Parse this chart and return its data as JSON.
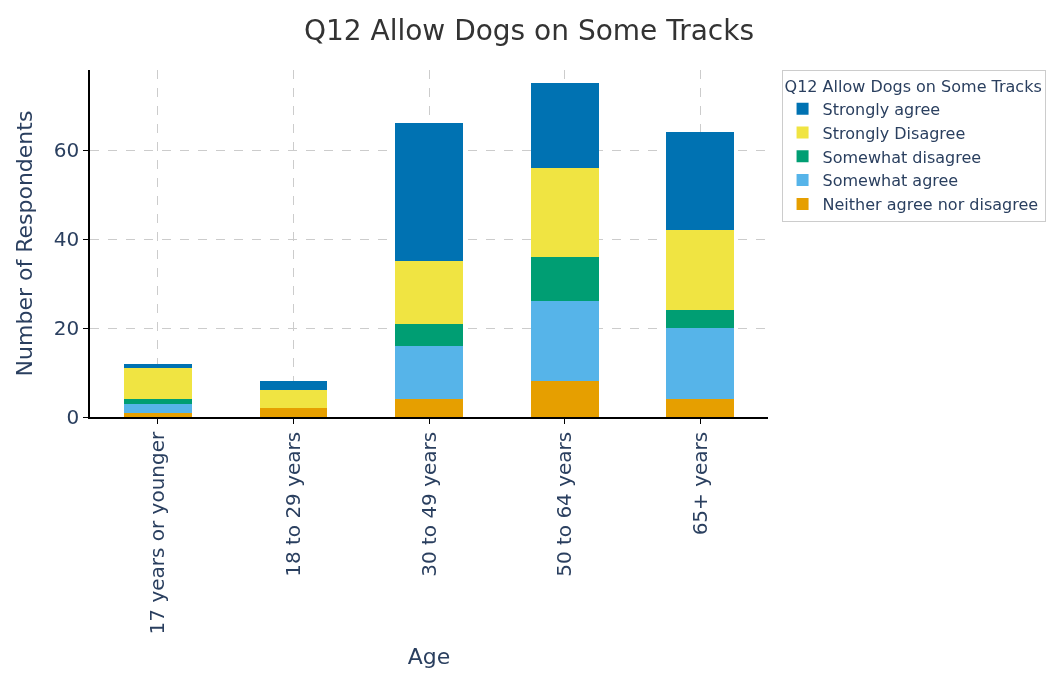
{
  "chart_data": {
    "type": "bar",
    "stacked": true,
    "title": "Q12 Allow Dogs on Some Tracks",
    "xlabel": "Age",
    "ylabel": "Number of Respondents",
    "legend_title": "Q12 Allow Dogs on Some Tracks",
    "categories": [
      "17 years or younger",
      "18 to 29 years",
      "30 to 49 years",
      "50 to 64 years",
      "65+ years"
    ],
    "series": [
      {
        "name": "Neither agree nor disagree",
        "color": "#e69f00",
        "values": [
          1,
          2,
          4,
          8,
          4
        ]
      },
      {
        "name": "Somewhat agree",
        "color": "#56b4e9",
        "values": [
          2,
          0,
          12,
          18,
          16
        ]
      },
      {
        "name": "Somewhat disagree",
        "color": "#009e73",
        "values": [
          1,
          0,
          5,
          10,
          4
        ]
      },
      {
        "name": "Strongly Disagree",
        "color": "#f0e442",
        "values": [
          7,
          4,
          14,
          20,
          18
        ]
      },
      {
        "name": "Strongly agree",
        "color": "#0072b2",
        "values": [
          1,
          2,
          31,
          19,
          22
        ]
      }
    ],
    "ylim": [
      0,
      78
    ],
    "yticks": [
      0,
      20,
      40,
      60
    ],
    "grid": true,
    "legend": "right"
  }
}
